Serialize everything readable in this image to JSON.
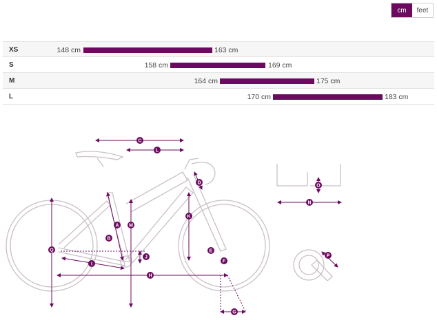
{
  "unit_toggle": {
    "options": [
      "cm",
      "feet"
    ],
    "selected": "cm"
  },
  "sizes": [
    {
      "label": "XS",
      "min": "148 cm",
      "max": "163 cm"
    },
    {
      "label": "S",
      "min": "158 cm",
      "max": "169 cm"
    },
    {
      "label": "M",
      "min": "164 cm",
      "max": "175 cm"
    },
    {
      "label": "L",
      "min": "170 cm",
      "max": "183 cm"
    }
  ],
  "geometry_markers": [
    "A",
    "B",
    "C",
    "D",
    "E",
    "F",
    "G",
    "H",
    "I",
    "J",
    "K",
    "L",
    "M",
    "N",
    "O",
    "P",
    "Q"
  ],
  "colors": {
    "accent": "#6b0a5e",
    "frame": "#c9c0c6"
  }
}
